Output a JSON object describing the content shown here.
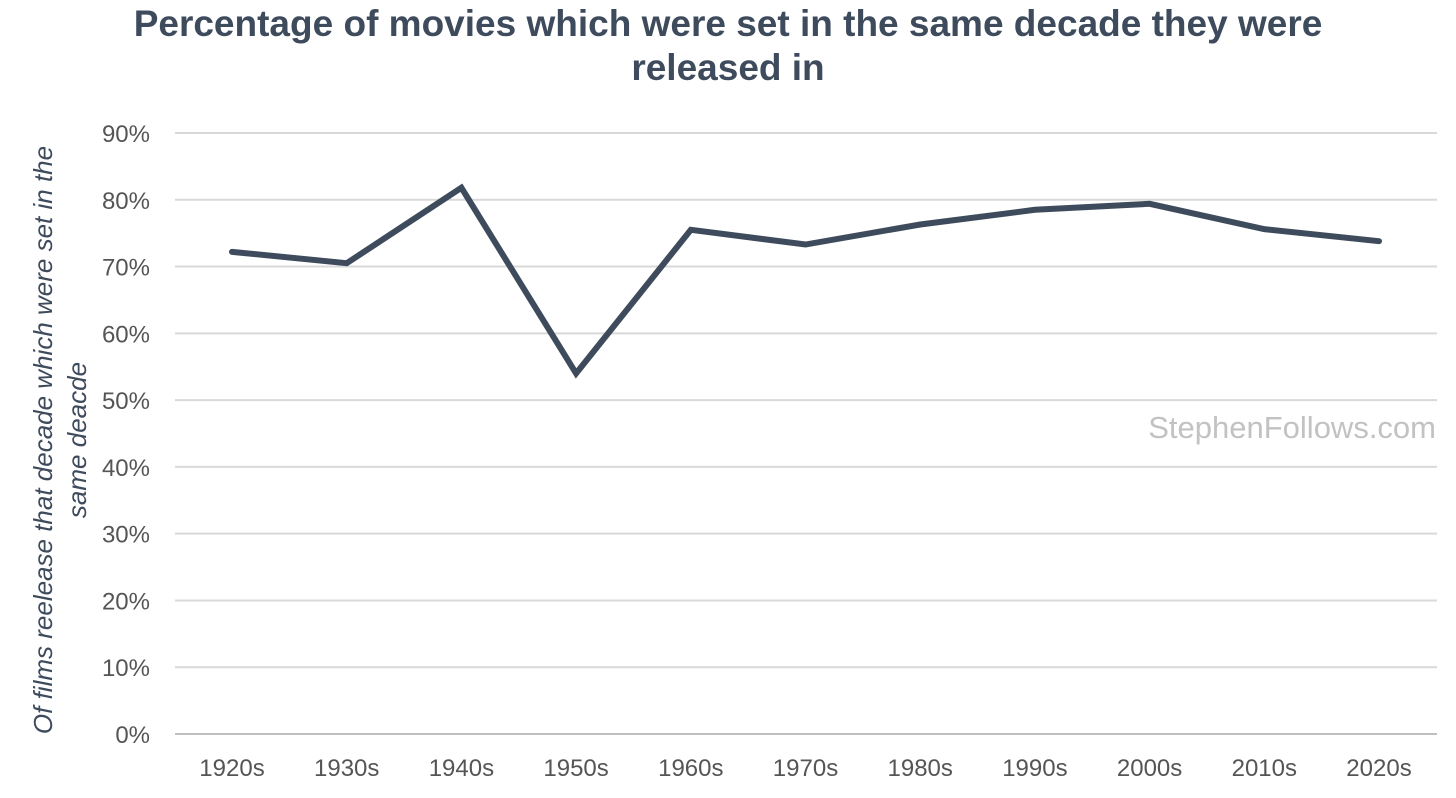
{
  "chart_data": {
    "type": "line",
    "title": "Percentage of movies which were set in the same decade they were released in",
    "xlabel": "",
    "ylabel": "Of films reelease that decade which  were set in the same deacde",
    "categories": [
      "1920s",
      "1930s",
      "1940s",
      "1950s",
      "1960s",
      "1970s",
      "1980s",
      "1990s",
      "2000s",
      "2010s",
      "2020s"
    ],
    "series": [
      {
        "name": "Percentage",
        "values": [
          72.2,
          70.5,
          81.8,
          54.0,
          75.5,
          73.3,
          76.3,
          78.5,
          79.4,
          75.6,
          73.8
        ]
      }
    ],
    "ylim": [
      0,
      90
    ],
    "yticks": [
      0,
      10,
      20,
      30,
      40,
      50,
      60,
      70,
      80,
      90
    ],
    "ytick_labels": [
      "0%",
      "10%",
      "20%",
      "30%",
      "40%",
      "50%",
      "60%",
      "70%",
      "80%",
      "90%"
    ],
    "grid": true,
    "colors": {
      "line": "#3e4b5c",
      "grid": "#d9d9d9",
      "axis": "#bfbfbf"
    },
    "watermark": "StephenFollows.com"
  }
}
